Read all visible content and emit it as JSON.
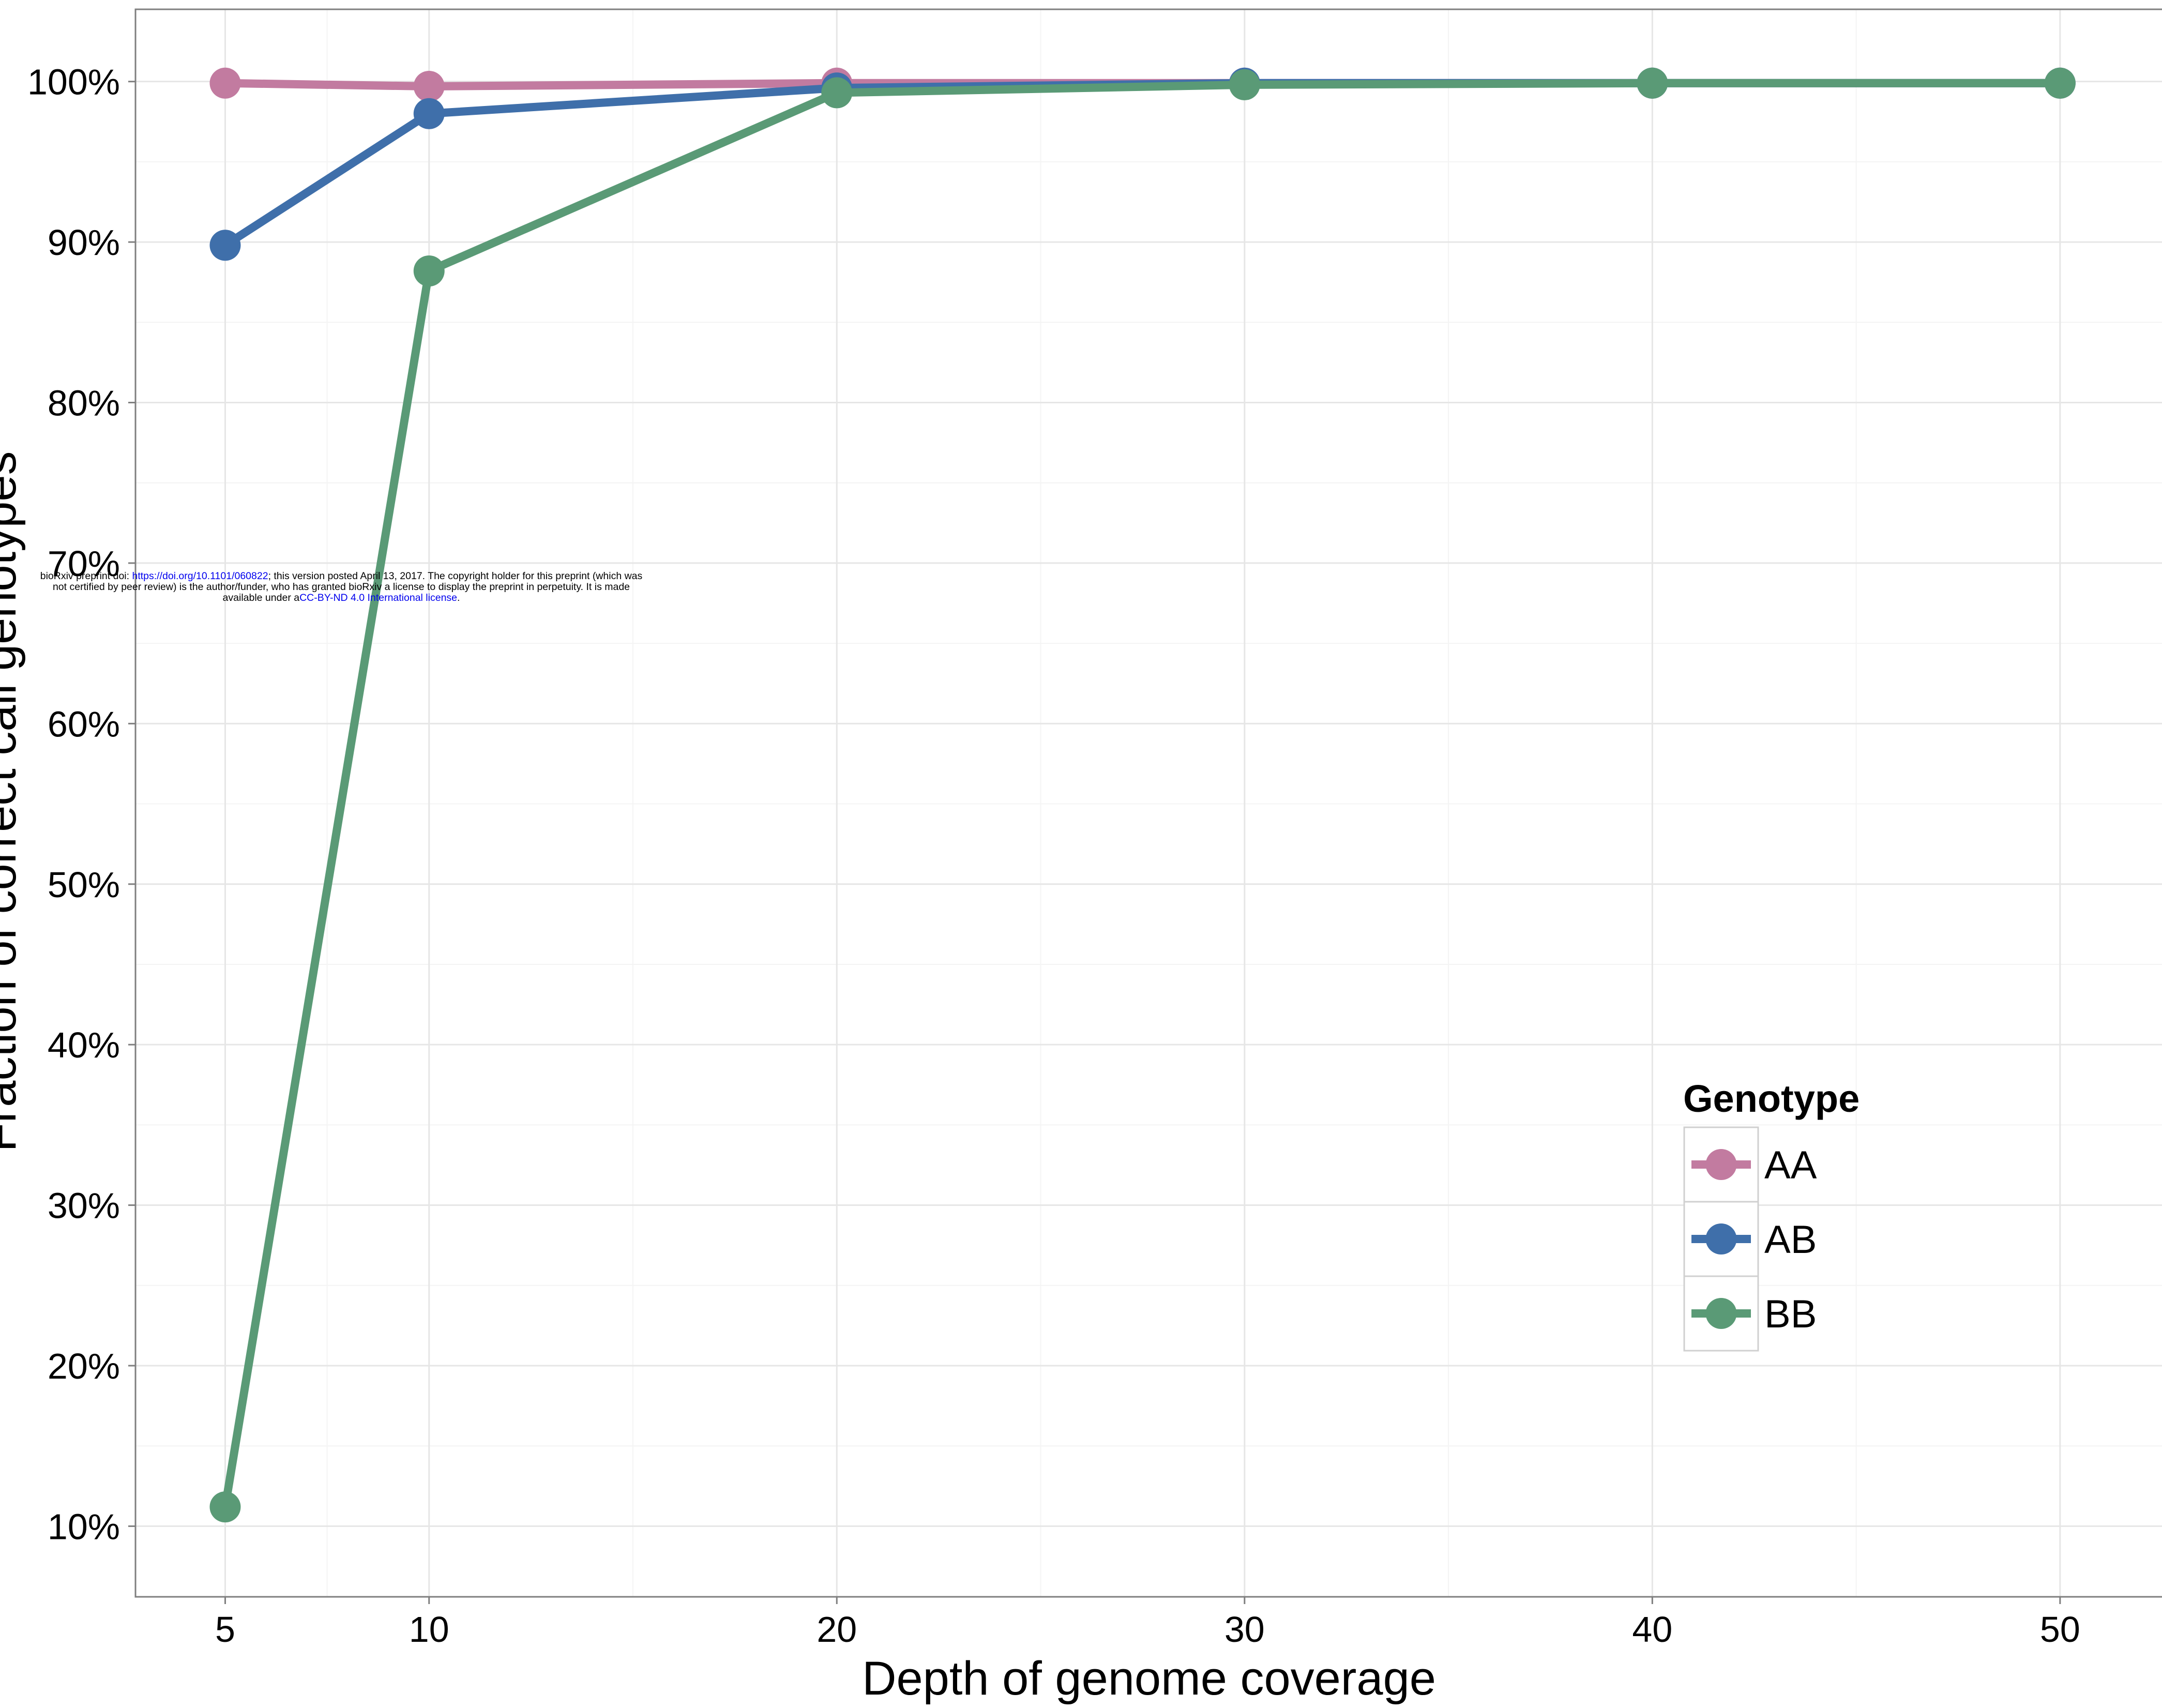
{
  "chart_data": {
    "type": "line",
    "title": "",
    "xlabel": "Depth of genome coverage",
    "ylabel": "Fraction of correct call genotypes",
    "x": [
      5,
      10,
      20,
      30,
      40,
      50
    ],
    "xticks": [
      "5",
      "10",
      "20",
      "30",
      "40",
      "50"
    ],
    "xlim": [
      2.8,
      52.5
    ],
    "yticks": [
      {
        "value": 10,
        "label": "10%"
      },
      {
        "value": 20,
        "label": "20%"
      },
      {
        "value": 30,
        "label": "30%"
      },
      {
        "value": 40,
        "label": "40%"
      },
      {
        "value": 50,
        "label": "50%"
      },
      {
        "value": 60,
        "label": "60%"
      },
      {
        "value": 70,
        "label": "70%"
      },
      {
        "value": 80,
        "label": "80%"
      },
      {
        "value": 90,
        "label": "90%"
      },
      {
        "value": 100,
        "label": "100%"
      }
    ],
    "ylim": [
      5.6,
      104.5
    ],
    "grid": true,
    "legend_position": "bottom-right",
    "legend_title": "Genotype",
    "series": [
      {
        "name": "AA",
        "color": "#c27ba0",
        "values": [
          99.9,
          99.7,
          99.9,
          99.9,
          99.9,
          99.9
        ]
      },
      {
        "name": "AB",
        "color": "#3f6faa",
        "values": [
          89.8,
          98.0,
          99.6,
          99.9,
          99.9,
          99.9
        ]
      },
      {
        "name": "BB",
        "color": "#5a9a76",
        "values": [
          11.2,
          88.2,
          99.3,
          99.8,
          99.9,
          99.9
        ]
      }
    ]
  },
  "notice": {
    "line1_a": "bioRxiv preprint doi: ",
    "line1_link": "https://doi.org/10.1101/060822",
    "line1_b": "; this version posted April 13, 2017. The copyright holder for this preprint (which was",
    "line2": "not certified by peer review) is the author/funder, who has granted bioRxiv a license to display the preprint in perpetuity. It is made",
    "line3_a": "available under a",
    "line3_link": "CC-BY-ND 4.0 International license",
    "line3_b": "."
  }
}
